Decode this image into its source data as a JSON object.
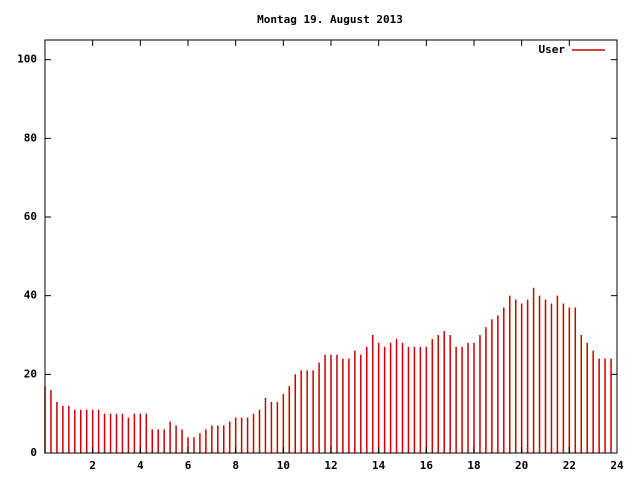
{
  "chart_data": {
    "type": "impulse",
    "title": "Montag 19. August 2013",
    "series": [
      {
        "name": "User",
        "color": "#cc0000",
        "x": [
          0,
          0.25,
          0.5,
          0.75,
          1,
          1.25,
          1.5,
          1.75,
          2,
          2.25,
          2.5,
          2.75,
          3,
          3.25,
          3.5,
          3.75,
          4,
          4.25,
          4.5,
          4.75,
          5,
          5.25,
          5.5,
          5.75,
          6,
          6.25,
          6.5,
          6.75,
          7,
          7.25,
          7.5,
          7.75,
          8,
          8.25,
          8.5,
          8.75,
          9,
          9.25,
          9.5,
          9.75,
          10,
          10.25,
          10.5,
          10.75,
          11,
          11.25,
          11.5,
          11.75,
          12,
          12.25,
          12.5,
          12.75,
          13,
          13.25,
          13.5,
          13.75,
          14,
          14.25,
          14.5,
          14.75,
          15,
          15.25,
          15.5,
          15.75,
          16,
          16.25,
          16.5,
          16.75,
          17,
          17.25,
          17.5,
          17.75,
          18,
          18.25,
          18.5,
          18.75,
          19,
          19.25,
          19.5,
          19.75,
          20,
          20.25,
          20.5,
          20.75,
          21,
          21.25,
          21.5,
          21.75,
          22,
          22.25,
          22.5,
          22.75,
          23,
          23.25,
          23.5,
          23.75
        ],
        "values": [
          17,
          16,
          13,
          12,
          12,
          11,
          11,
          11,
          11,
          11,
          10,
          10,
          10,
          10,
          9,
          10,
          10,
          10,
          6,
          6,
          6,
          8,
          7,
          6,
          4,
          4,
          5,
          6,
          7,
          7,
          7,
          8,
          9,
          9,
          9,
          10,
          11,
          14,
          13,
          13,
          15,
          17,
          20,
          21,
          21,
          21,
          23,
          25,
          25,
          25,
          24,
          24,
          26,
          25,
          27,
          30,
          28,
          27,
          28,
          29,
          28,
          27,
          27,
          27,
          27,
          29,
          30,
          31,
          30,
          27,
          27,
          28,
          28,
          30,
          32,
          34,
          35,
          37,
          40,
          39,
          38,
          39,
          42,
          40,
          39,
          38,
          40,
          38,
          37,
          37,
          30,
          28,
          26,
          24,
          24,
          24
        ]
      }
    ],
    "xlim": [
      0,
      24
    ],
    "xticks": [
      2,
      4,
      6,
      8,
      10,
      12,
      14,
      16,
      18,
      20,
      22,
      24
    ],
    "ylim": [
      0,
      105
    ],
    "yticks": [
      0,
      20,
      40,
      60,
      80,
      100
    ],
    "legend": "top-right"
  }
}
